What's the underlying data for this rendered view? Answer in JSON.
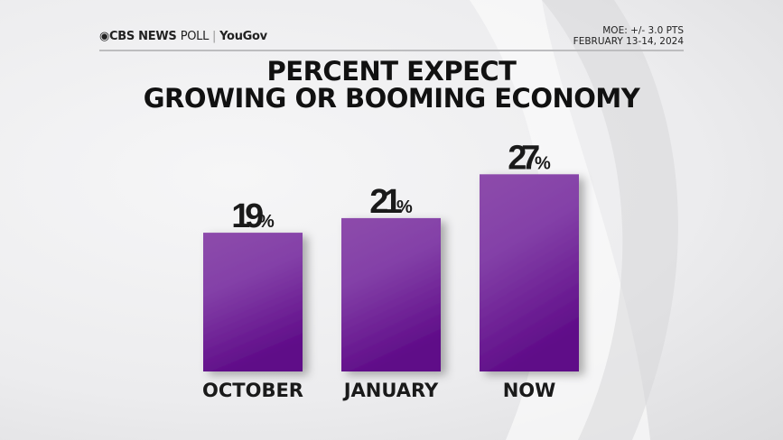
{
  "header": {
    "logo": "CBS NEWS",
    "logo_light": "POLL",
    "logo_partner": "YouGov",
    "moe": "MOE: +/- 3.0 PTS",
    "dates": "FEBRUARY 13-14, 2024"
  },
  "chart_data": {
    "type": "bar",
    "title": "PERCENT EXPECT GROWING OR BOOMING ECONOMY",
    "title_lines": [
      "PERCENT EXPECT",
      "GROWING OR BOOMING ECONOMY"
    ],
    "categories": [
      "OCTOBER",
      "JANUARY",
      "NOW"
    ],
    "values": [
      19,
      21,
      27
    ],
    "data_labels": [
      "19",
      "21",
      "27"
    ],
    "unit": "%",
    "bar_color": "#7a2ea0",
    "grid": false
  }
}
